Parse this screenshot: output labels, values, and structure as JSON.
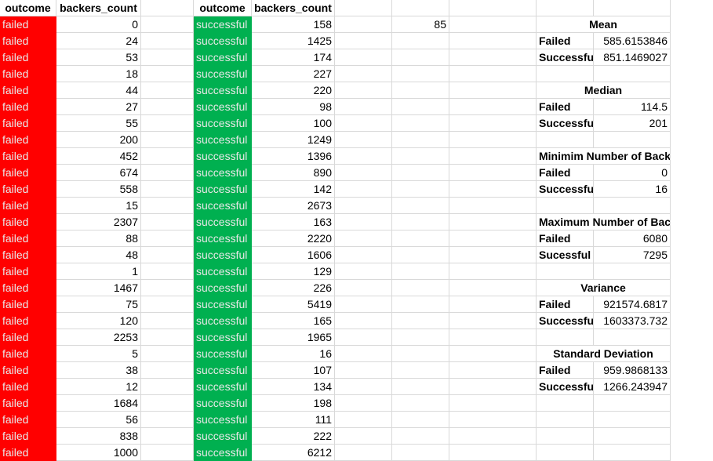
{
  "headers": {
    "left": [
      "outcome",
      "backers_count"
    ],
    "right": [
      "outcome",
      "backers_count"
    ]
  },
  "failed_label": "failed",
  "success_label": "successful",
  "failed_counts": [
    "0",
    "24",
    "53",
    "18",
    "44",
    "27",
    "55",
    "200",
    "452",
    "674",
    "558",
    "15",
    "2307",
    "88",
    "48",
    "1",
    "1467",
    "75",
    "120",
    "2253",
    "5",
    "38",
    "12",
    "1684",
    "56",
    "838",
    "1000"
  ],
  "successful_counts": [
    "158",
    "1425",
    "174",
    "227",
    "220",
    "98",
    "100",
    "1249",
    "1396",
    "890",
    "142",
    "2673",
    "163",
    "2220",
    "1606",
    "129",
    "226",
    "5419",
    "165",
    "1965",
    "16",
    "107",
    "134",
    "198",
    "111",
    "222",
    "6212"
  ],
  "misc_value": "85",
  "stats": [
    {
      "title": "Mean",
      "rows": [
        {
          "label": "Failed",
          "value": "585.6153846"
        },
        {
          "label": "Successful",
          "value": "851.1469027"
        }
      ]
    },
    {
      "title": "Median",
      "rows": [
        {
          "label": "Failed",
          "value": "114.5"
        },
        {
          "label": "Successful",
          "value": "201"
        }
      ]
    },
    {
      "title": "Minimim Number of Backers",
      "rows": [
        {
          "label": "Failed",
          "value": "0"
        },
        {
          "label": "Successful",
          "value": "16"
        }
      ]
    },
    {
      "title": "Maximum Number of Backers",
      "rows": [
        {
          "label": "Failed",
          "value": "6080"
        },
        {
          "label": "Sucessful",
          "value": "7295"
        }
      ]
    },
    {
      "title": "Variance",
      "rows": [
        {
          "label": "Failed",
          "value": "921574.6817"
        },
        {
          "label": "Successful",
          "value": "1603373.732"
        }
      ]
    },
    {
      "title": "Standard Deviation",
      "rows": [
        {
          "label": "Failed",
          "value": "959.9868133"
        },
        {
          "label": "Successful",
          "value": "1266.243947"
        }
      ]
    }
  ],
  "colors": {
    "failed_fill": "#ff0000",
    "success_fill": "#00b050",
    "gridline": "#d9d9d9"
  }
}
